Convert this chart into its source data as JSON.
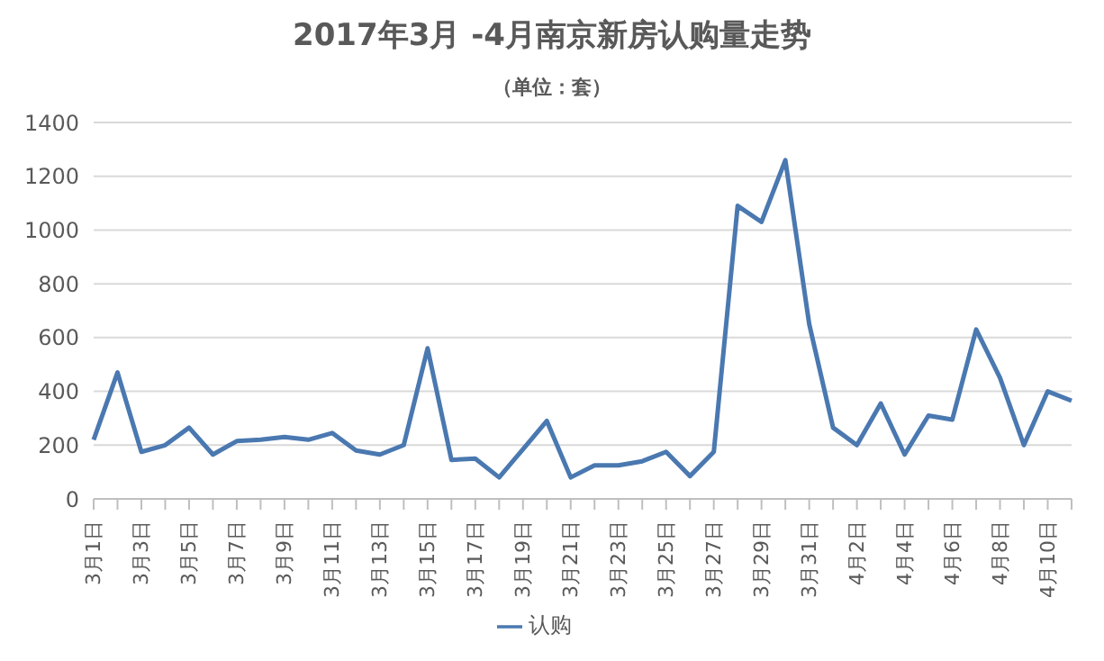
{
  "chart_data": {
    "type": "line",
    "title": "2017年3月 -4月南京新房认购量走势",
    "subtitle": "（单位：套）",
    "categories": [
      "3月1日",
      null,
      "3月3日",
      null,
      "3月5日",
      null,
      "3月7日",
      null,
      "3月9日",
      null,
      "3月11日",
      null,
      "3月13日",
      null,
      "3月15日",
      null,
      "3月17日",
      null,
      "3月19日",
      null,
      "3月21日",
      null,
      "3月23日",
      null,
      "3月25日",
      null,
      "3月27日",
      null,
      "3月29日",
      null,
      "3月31日",
      null,
      "4月2日",
      null,
      "4月4日",
      null,
      "4月6日",
      null,
      "4月8日",
      null,
      "4月10日",
      null
    ],
    "series": [
      {
        "name": "认购",
        "color": "#4a78b0",
        "values": [
          220,
          470,
          175,
          200,
          265,
          165,
          215,
          220,
          230,
          220,
          245,
          180,
          165,
          200,
          560,
          145,
          150,
          80,
          185,
          290,
          80,
          125,
          125,
          140,
          175,
          85,
          175,
          1090,
          1030,
          1260,
          650,
          265,
          200,
          355,
          165,
          310,
          295,
          630,
          450,
          200,
          400,
          365
        ]
      }
    ],
    "ylim": [
      0,
      1400
    ],
    "yticks": [
      0,
      200,
      400,
      600,
      800,
      1000,
      1200,
      1400
    ],
    "grid": "y",
    "legend": "bottom",
    "marker": "none",
    "line_style": "solid"
  }
}
